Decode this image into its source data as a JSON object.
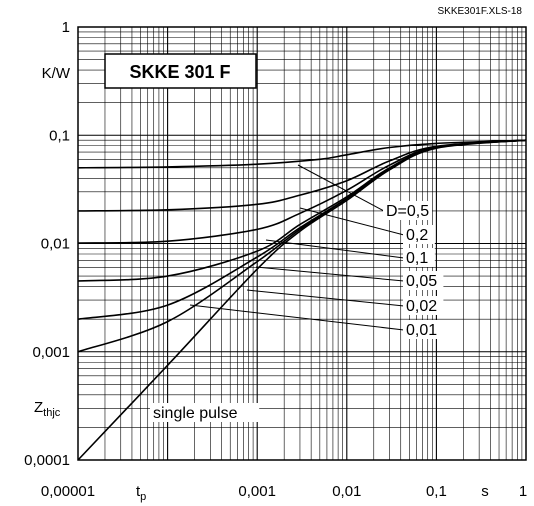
{
  "chart_data": {
    "type": "line",
    "title": "SKKE 301 F",
    "file_id": "SKKE301F.XLS-18",
    "x_scale": "log",
    "y_scale": "log",
    "xlim": [
      1e-05,
      1
    ],
    "ylim": [
      0.0001,
      1
    ],
    "grid": true,
    "x_ticks": [
      "0,00001",
      "0,001",
      "0,01",
      "0,1",
      "1"
    ],
    "x_tick_values": [
      1e-05,
      0.001,
      0.01,
      0.1,
      1
    ],
    "y_ticks": [
      "1",
      "0,1",
      "0,01",
      "0,001",
      "0,0001"
    ],
    "y_tick_values": [
      1,
      0.1,
      0.01,
      0.001,
      0.0001
    ],
    "xlabel_main": "t",
    "xlabel_sub": "p",
    "x_unit": "s",
    "ylabel_main": "Z",
    "ylabel_sub": "thjc",
    "y_unit": "K/W",
    "series": [
      {
        "name": "D=0,5",
        "label_text": "D=0,5",
        "points": [
          [
            1e-05,
            0.05
          ],
          [
            0.0001,
            0.051
          ],
          [
            0.001,
            0.054
          ],
          [
            0.005,
            0.06
          ],
          [
            0.01,
            0.066
          ],
          [
            0.03,
            0.077
          ],
          [
            0.1,
            0.084
          ],
          [
            1,
            0.09
          ]
        ]
      },
      {
        "name": "0,2",
        "label_text": "0,2",
        "points": [
          [
            1e-05,
            0.02
          ],
          [
            0.0001,
            0.0205
          ],
          [
            0.001,
            0.023
          ],
          [
            0.003,
            0.028
          ],
          [
            0.01,
            0.038
          ],
          [
            0.03,
            0.058
          ],
          [
            0.1,
            0.079
          ],
          [
            1,
            0.09
          ]
        ]
      },
      {
        "name": "0,1",
        "label_text": "0,1",
        "points": [
          [
            1e-05,
            0.0101
          ],
          [
            0.0001,
            0.0105
          ],
          [
            0.001,
            0.0135
          ],
          [
            0.003,
            0.019
          ],
          [
            0.01,
            0.031
          ],
          [
            0.03,
            0.053
          ],
          [
            0.1,
            0.078
          ],
          [
            1,
            0.09
          ]
        ]
      },
      {
        "name": "0,05",
        "label_text": "0,05",
        "points": [
          [
            1e-05,
            0.0045
          ],
          [
            0.0001,
            0.005
          ],
          [
            0.001,
            0.0085
          ],
          [
            0.003,
            0.015
          ],
          [
            0.01,
            0.027
          ],
          [
            0.03,
            0.05
          ],
          [
            0.1,
            0.077
          ],
          [
            1,
            0.09
          ]
        ]
      },
      {
        "name": "0,02",
        "label_text": "0,02",
        "points": [
          [
            1e-05,
            0.002
          ],
          [
            0.0001,
            0.0027
          ],
          [
            0.001,
            0.0075
          ],
          [
            0.003,
            0.014
          ],
          [
            0.01,
            0.026
          ],
          [
            0.03,
            0.049
          ],
          [
            0.1,
            0.077
          ],
          [
            1,
            0.09
          ]
        ]
      },
      {
        "name": "0,01",
        "label_text": "0,01",
        "points": [
          [
            1e-05,
            0.001
          ],
          [
            0.0001,
            0.0019
          ],
          [
            0.001,
            0.0068
          ],
          [
            0.003,
            0.0135
          ],
          [
            0.01,
            0.026
          ],
          [
            0.03,
            0.049
          ],
          [
            0.1,
            0.077
          ],
          [
            1,
            0.09
          ]
        ]
      },
      {
        "name": "single pulse",
        "label_text": "single pulse",
        "points": [
          [
            1e-05,
            0.0001
          ],
          [
            0.0001,
            0.00075
          ],
          [
            0.001,
            0.0058
          ],
          [
            0.003,
            0.013
          ],
          [
            0.01,
            0.025
          ],
          [
            0.03,
            0.048
          ],
          [
            0.1,
            0.076
          ],
          [
            1,
            0.09
          ]
        ]
      }
    ]
  }
}
